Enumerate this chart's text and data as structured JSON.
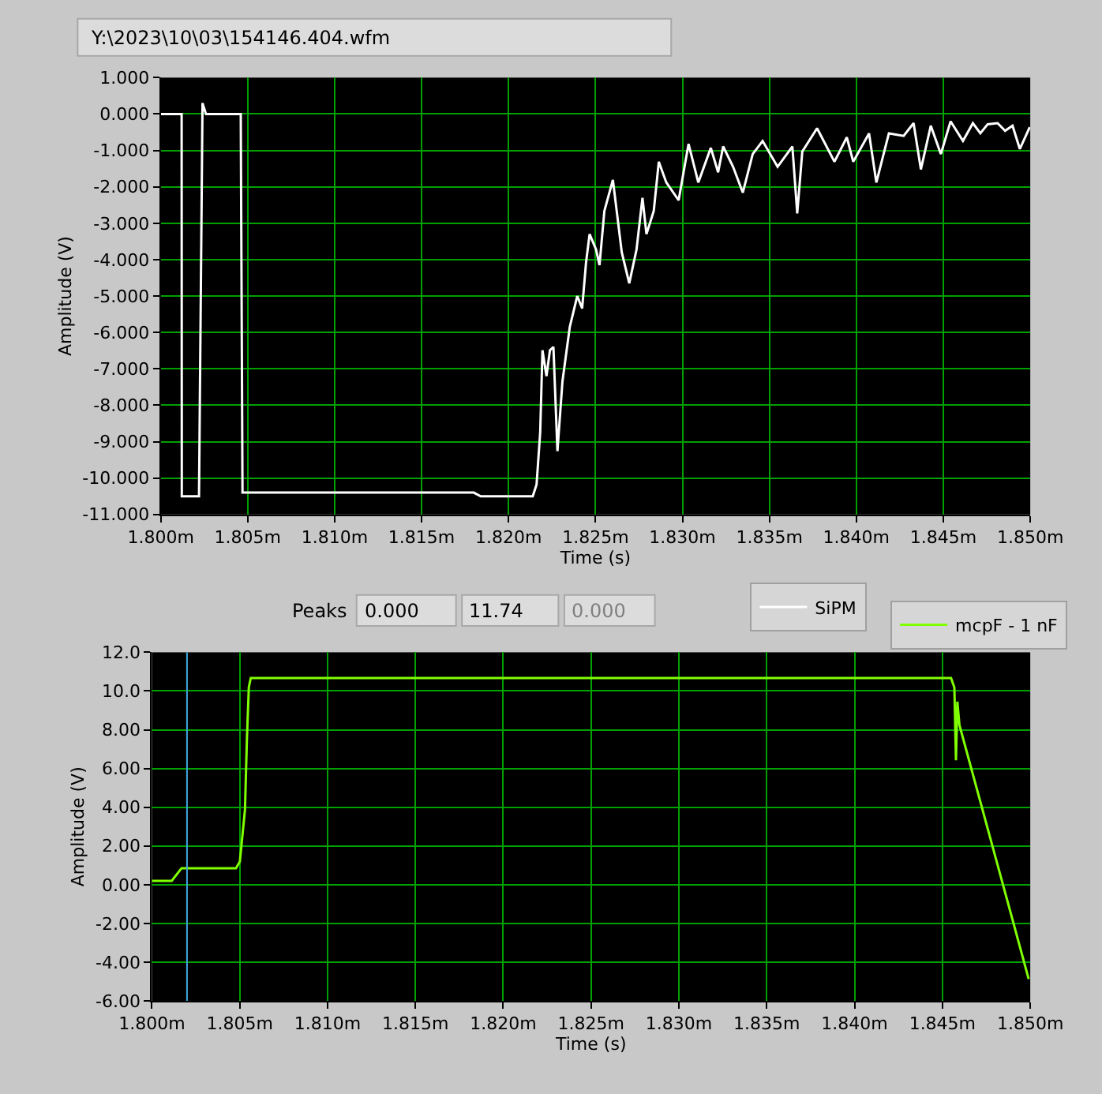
{
  "chart_data": [
    {
      "type": "line",
      "xlabel": "Time (s)",
      "ylabel": "Amplitude (V)",
      "annotations": [
        "Y:\\2023\\10\\03\\154146.404.wfm"
      ],
      "xlim": [
        1.8,
        1.85
      ],
      "xticks": [
        {
          "value": 1.8,
          "label": "1.800m"
        },
        {
          "value": 1.805,
          "label": "1.805m"
        },
        {
          "value": 1.81,
          "label": "1.810m"
        },
        {
          "value": 1.815,
          "label": "1.815m"
        },
        {
          "value": 1.82,
          "label": "1.820m"
        },
        {
          "value": 1.825,
          "label": "1.825m"
        },
        {
          "value": 1.83,
          "label": "1.830m"
        },
        {
          "value": 1.835,
          "label": "1.835m"
        },
        {
          "value": 1.84,
          "label": "1.840m"
        },
        {
          "value": 1.845,
          "label": "1.845m"
        },
        {
          "value": 1.85,
          "label": "1.850m"
        }
      ],
      "ylim": [
        -11,
        1
      ],
      "yticks": [
        {
          "value": 1,
          "label": "1.000"
        },
        {
          "value": 0,
          "label": "0.000"
        },
        {
          "value": -1,
          "label": "-1.000"
        },
        {
          "value": -2,
          "label": "-2.000"
        },
        {
          "value": -3,
          "label": "-3.000"
        },
        {
          "value": -4,
          "label": "-4.000"
        },
        {
          "value": -5,
          "label": "-5.000"
        },
        {
          "value": -6,
          "label": "-6.000"
        },
        {
          "value": -7,
          "label": "-7.000"
        },
        {
          "value": -8,
          "label": "-8.000"
        },
        {
          "value": -9,
          "label": "-9.000"
        },
        {
          "value": -10,
          "label": "-10.000"
        },
        {
          "value": -11,
          "label": "-11.000"
        }
      ],
      "grid": true,
      "legend": "bottom right",
      "marker": "none",
      "line_style": "solid",
      "series": [
        {
          "name": "SiPM",
          "color": "#ffffff",
          "x": [
            1.8,
            1.8012,
            1.80121,
            1.8022,
            1.8024,
            1.8026,
            1.8046,
            1.8047,
            1.818,
            1.8184,
            1.8213,
            1.82139,
            1.82161,
            1.82182,
            1.82195,
            1.82218,
            1.82238,
            1.82258,
            1.82281,
            1.8231,
            1.82352,
            1.82395,
            1.82423,
            1.82446,
            1.82466,
            1.82503,
            1.82523,
            1.82551,
            1.826,
            1.82651,
            1.82694,
            1.82736,
            1.8277,
            1.82793,
            1.82835,
            1.82864,
            1.82907,
            1.82978,
            1.83035,
            1.83091,
            1.83163,
            1.83205,
            1.83234,
            1.83291,
            1.83347,
            1.83404,
            1.83461,
            1.83547,
            1.83632,
            1.8366,
            1.83689,
            1.83774,
            1.83874,
            1.83945,
            1.83982,
            1.84073,
            1.84115,
            1.84187,
            1.84272,
            1.84329,
            1.84371,
            1.84428,
            1.84486,
            1.84542,
            1.84613,
            1.8467,
            1.84713,
            1.84755,
            1.84812,
            1.84855,
            1.84898,
            1.8494,
            1.84997
          ],
          "values": [
            0,
            0,
            -10.5,
            -10.5,
            0.3,
            0,
            0,
            -10.4,
            -10.4,
            -10.5,
            -10.5,
            -10.5,
            -10.18,
            -8.74,
            -6.49,
            -7.2,
            -6.49,
            -6.4,
            -9.26,
            -7.34,
            -5.85,
            -5.0,
            -5.34,
            -4.06,
            -3.3,
            -3.72,
            -4.15,
            -2.66,
            -1.81,
            -3.8,
            -4.65,
            -3.72,
            -2.3,
            -3.3,
            -2.66,
            -1.31,
            -1.88,
            -2.37,
            -0.82,
            -1.88,
            -0.93,
            -1.6,
            -0.89,
            -1.45,
            -2.16,
            -1.1,
            -0.74,
            -1.45,
            -0.89,
            -2.73,
            -1.03,
            -0.39,
            -1.31,
            -0.64,
            -1.31,
            -0.53,
            -1.88,
            -0.53,
            -0.6,
            -0.25,
            -1.52,
            -0.32,
            -1.1,
            -0.2,
            -0.74,
            -0.25,
            -0.53,
            -0.28,
            -0.25,
            -0.46,
            -0.32,
            -0.96,
            -0.36
          ]
        }
      ]
    },
    {
      "type": "line",
      "xlabel": "Time (s)",
      "ylabel": "Amplitude (V)",
      "annotations": [
        "Peaks",
        "0.000",
        "11.74",
        "0.000"
      ],
      "xlim": [
        1.8,
        1.85
      ],
      "xticks": [
        {
          "value": 1.8,
          "label": "1.800m"
        },
        {
          "value": 1.805,
          "label": "1.805m"
        },
        {
          "value": 1.81,
          "label": "1.810m"
        },
        {
          "value": 1.815,
          "label": "1.815m"
        },
        {
          "value": 1.82,
          "label": "1.820m"
        },
        {
          "value": 1.825,
          "label": "1.825m"
        },
        {
          "value": 1.83,
          "label": "1.830m"
        },
        {
          "value": 1.835,
          "label": "1.835m"
        },
        {
          "value": 1.84,
          "label": "1.840m"
        },
        {
          "value": 1.845,
          "label": "1.845m"
        },
        {
          "value": 1.85,
          "label": "1.850m"
        }
      ],
      "ylim": [
        -6,
        12
      ],
      "yticks": [
        {
          "value": 12,
          "label": "12.0"
        },
        {
          "value": 10,
          "label": "10.0"
        },
        {
          "value": 8,
          "label": "8.00"
        },
        {
          "value": 6,
          "label": "6.00"
        },
        {
          "value": 4,
          "label": "4.00"
        },
        {
          "value": 2,
          "label": "2.00"
        },
        {
          "value": 0,
          "label": "0.00"
        },
        {
          "value": -2,
          "label": "-2.00"
        },
        {
          "value": -4,
          "label": "-4.00"
        },
        {
          "value": -6,
          "label": "-6.00"
        }
      ],
      "grid": true,
      "legend": "top right",
      "marker": "none",
      "line_style": "solid",
      "ref_lines": [
        {
          "axis": "x",
          "value": 1.802,
          "color": "#3fa9e0"
        }
      ],
      "series": [
        {
          "name": "mcpF - 1 nF",
          "color": "#80ff00",
          "x": [
            1.8,
            1.80113,
            1.80169,
            1.80479,
            1.80501,
            1.8053,
            1.80541,
            1.80552,
            1.80563,
            1.84549,
            1.84568,
            1.84577,
            1.84585,
            1.84597,
            1.84991
          ],
          "values": [
            0.2,
            0.2,
            0.85,
            0.85,
            1.2,
            3.87,
            7.5,
            10.2,
            10.67,
            10.67,
            10.18,
            6.42,
            9.45,
            8.24,
            -4.87
          ]
        }
      ]
    }
  ]
}
